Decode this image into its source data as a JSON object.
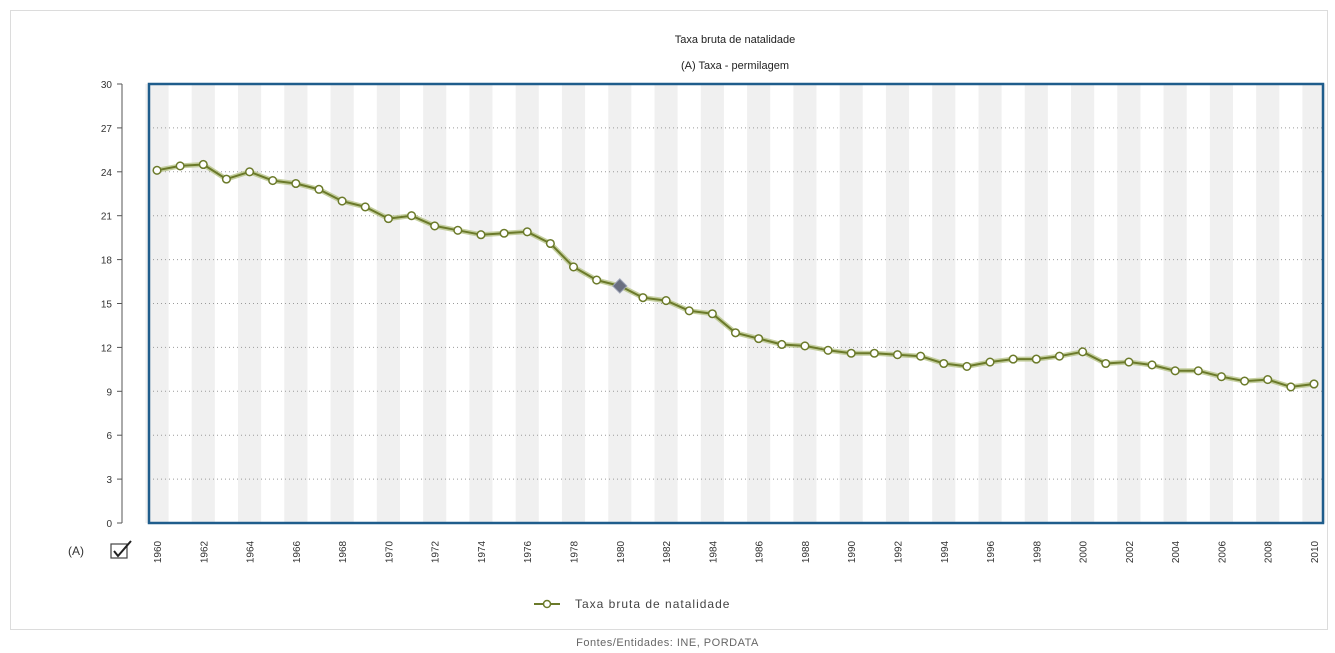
{
  "chart_data": {
    "type": "line",
    "title": "Taxa bruta de natalidade",
    "subtitle": "(A) Taxa - permilagem",
    "series_marker": "(A)",
    "ylim": [
      0,
      30
    ],
    "yticks": [
      0,
      3,
      6,
      9,
      12,
      15,
      18,
      21,
      24,
      27,
      30
    ],
    "xlabels": [
      "1960",
      "1962",
      "1964",
      "1966",
      "1968",
      "1970",
      "1972",
      "1974",
      "1976",
      "1978",
      "1980",
      "1982",
      "1984",
      "1986",
      "1988",
      "1990",
      "1992",
      "1994",
      "1996",
      "1998",
      "2000",
      "2002",
      "2004",
      "2006",
      "2008",
      "2010"
    ],
    "grid": true,
    "legend_position": "bottom",
    "highlight_x": "1980",
    "series": [
      {
        "name": "Taxa bruta de natalidade",
        "color": "#6b7a2a",
        "x": [
          "1960",
          "1961",
          "1962",
          "1963",
          "1964",
          "1965",
          "1966",
          "1967",
          "1968",
          "1969",
          "1970",
          "1971",
          "1972",
          "1973",
          "1974",
          "1975",
          "1976",
          "1977",
          "1978",
          "1979",
          "1980",
          "1981",
          "1982",
          "1983",
          "1984",
          "1985",
          "1986",
          "1987",
          "1988",
          "1989",
          "1990",
          "1991",
          "1992",
          "1993",
          "1994",
          "1995",
          "1996",
          "1997",
          "1998",
          "1999",
          "2000",
          "2001",
          "2002",
          "2003",
          "2004",
          "2005",
          "2006",
          "2007",
          "2008",
          "2009",
          "2010"
        ],
        "values": [
          24.1,
          24.4,
          24.5,
          23.5,
          24.0,
          23.4,
          23.2,
          22.8,
          22.0,
          21.6,
          20.8,
          21.0,
          20.3,
          20.0,
          19.7,
          19.8,
          19.9,
          19.1,
          17.5,
          16.6,
          16.2,
          15.4,
          15.2,
          14.5,
          14.3,
          13.0,
          12.6,
          12.2,
          12.1,
          11.8,
          11.6,
          11.6,
          11.5,
          11.4,
          10.9,
          10.7,
          11.0,
          11.2,
          11.2,
          11.4,
          11.7,
          10.9,
          11.0,
          10.8,
          10.4,
          10.4,
          10.0,
          9.7,
          9.8,
          9.3,
          9.5
        ]
      }
    ]
  },
  "series_checkbox": {
    "checked": true
  },
  "legend": {
    "label": "Taxa bruta de natalidade"
  },
  "source": "Fontes/Entidades: INE, PORDATA"
}
